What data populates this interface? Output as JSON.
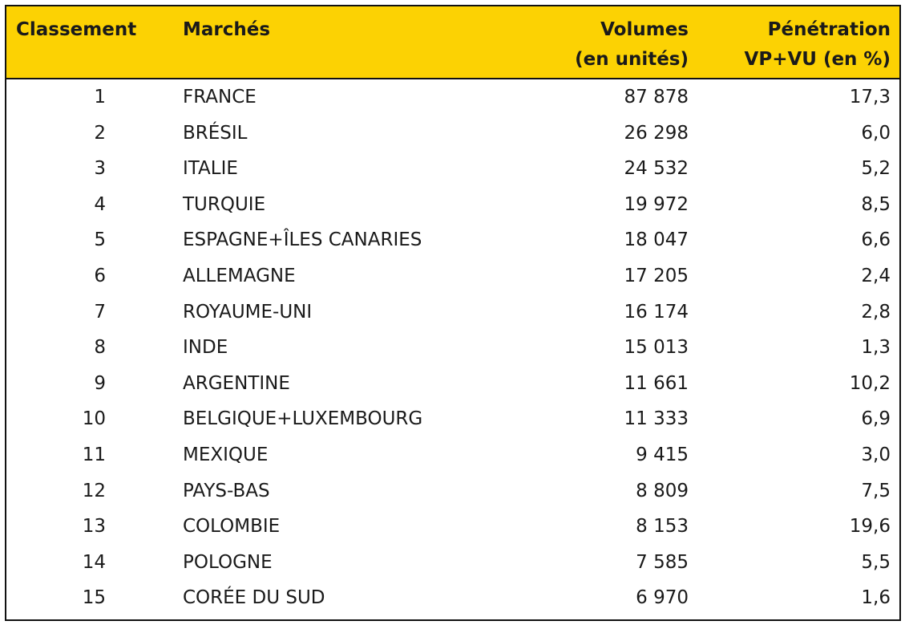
{
  "table": {
    "header": [
      [
        "Classement"
      ],
      [
        "Marchés"
      ],
      [
        "Volumes",
        "(en unités)"
      ],
      [
        "Pénétration",
        "VP+VU (en %)"
      ]
    ],
    "rows": [
      [
        "1",
        "FRANCE",
        "87 878",
        "17,3"
      ],
      [
        "2",
        "BRÉSIL",
        "26 298",
        "6,0"
      ],
      [
        "3",
        "ITALIE",
        "24 532",
        "5,2"
      ],
      [
        "4",
        "TURQUIE",
        "19 972",
        "8,5"
      ],
      [
        "5",
        "ESPAGNE+ÎLES CANARIES",
        "18 047",
        "6,6"
      ],
      [
        "6",
        "ALLEMAGNE",
        "17 205",
        "2,4"
      ],
      [
        "7",
        "ROYAUME-UNI",
        "16 174",
        "2,8"
      ],
      [
        "8",
        "INDE",
        "15 013",
        "1,3"
      ],
      [
        "9",
        "ARGENTINE",
        "11 661",
        "10,2"
      ],
      [
        "10",
        "BELGIQUE+LUXEMBOURG",
        "11 333",
        "6,9"
      ],
      [
        "11",
        "MEXIQUE",
        "9 415",
        "3,0"
      ],
      [
        "12",
        "PAYS-BAS",
        "8 809",
        "7,5"
      ],
      [
        "13",
        "COLOMBIE",
        "8 153",
        "19,6"
      ],
      [
        "14",
        "POLOGNE",
        "7 585",
        "5,5"
      ],
      [
        "15",
        "CORÉE DU SUD",
        "6 970",
        "1,6"
      ]
    ]
  }
}
